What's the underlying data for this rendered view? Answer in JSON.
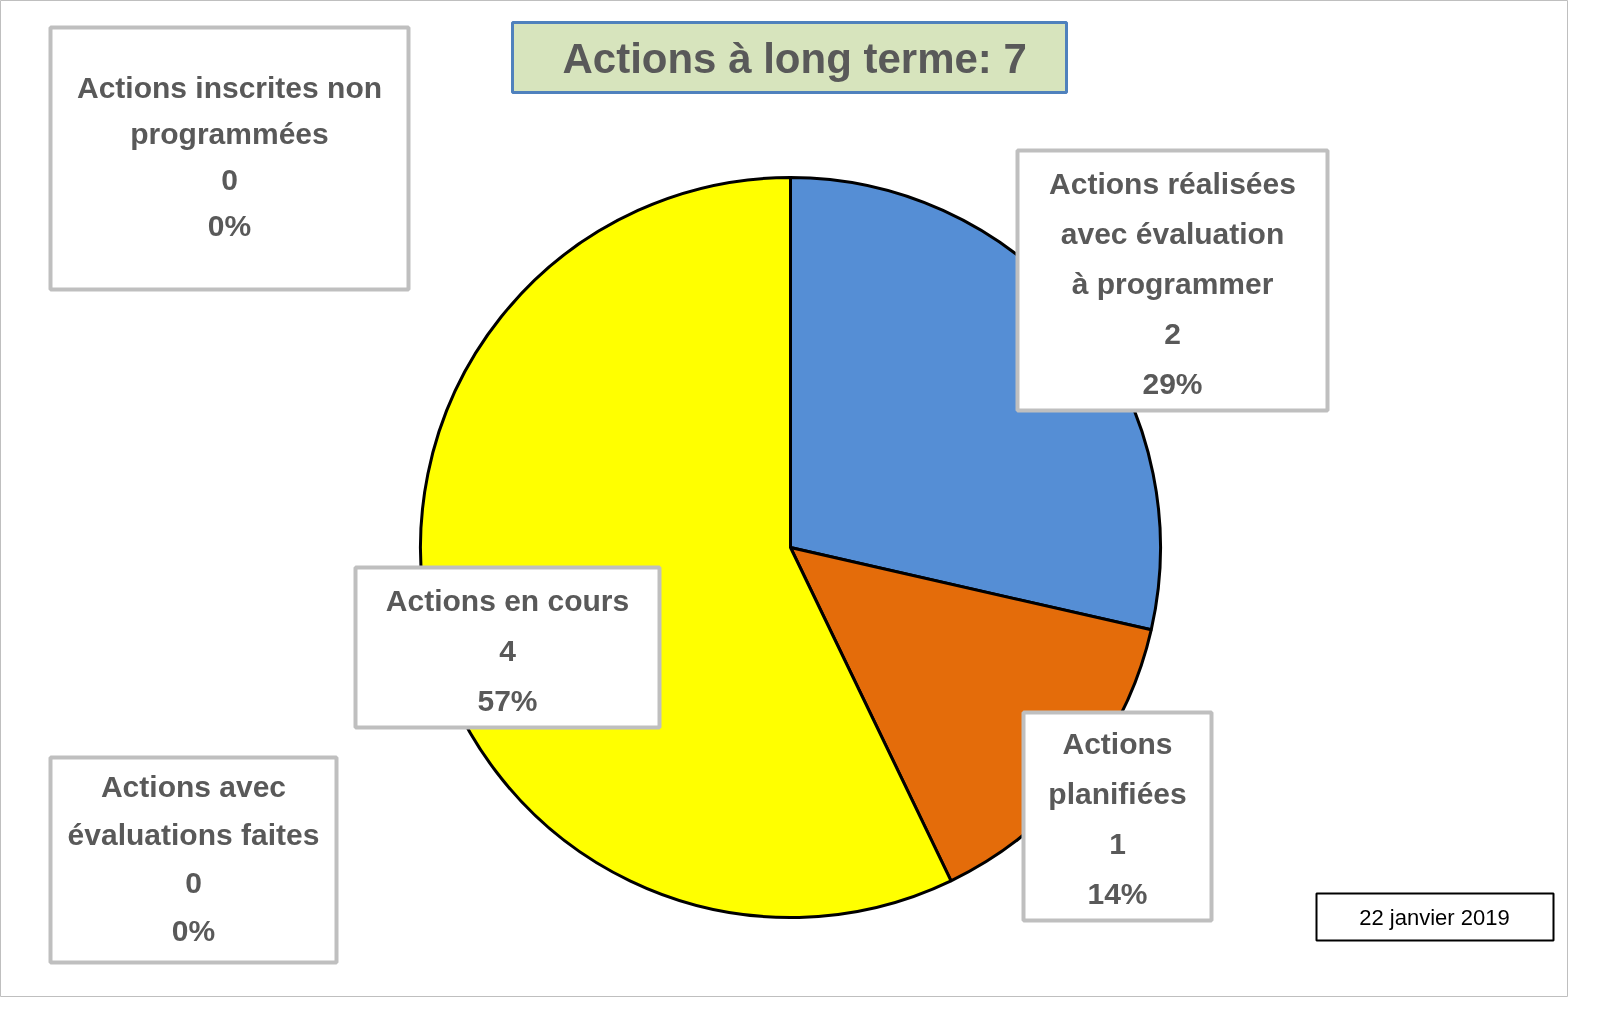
{
  "chart_data": {
    "type": "pie",
    "title": "Actions à long terme:  7",
    "categories": [
      "Actions réalisées\navec évaluation\nà programmer",
      "Actions\nplanifiées",
      "Actions en cours",
      "Actions avec\névaluations faites",
      "Actions inscrites non\nprogrammées"
    ],
    "values": [
      2,
      1,
      4,
      0,
      0
    ],
    "colors": [
      "#558ed5",
      "#e46c0a",
      "#ffff00",
      null,
      null
    ],
    "value_labels": [
      "2\n29%",
      "1\n14%",
      "4\n57%",
      "0\n0%",
      "0\n0%"
    ],
    "annotations": [
      "22 janvier 2019"
    ]
  }
}
